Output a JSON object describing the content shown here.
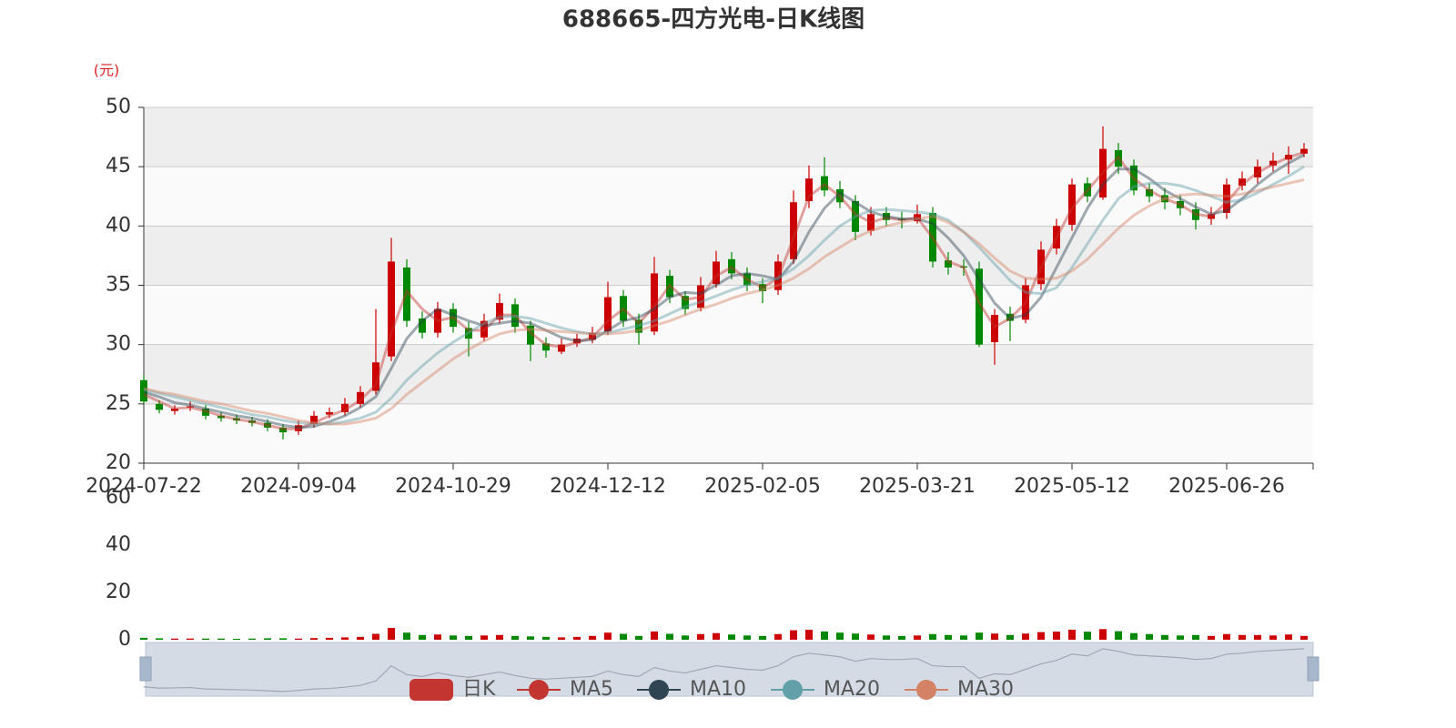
{
  "chart_data": {
    "type": "candlestick",
    "title": "688665-四方光电-日K线图",
    "y_unit": "(元)",
    "categories": [
      "2024-07-22",
      null,
      null,
      null,
      null,
      null,
      null,
      null,
      null,
      null,
      "2024-09-04",
      null,
      null,
      null,
      null,
      null,
      null,
      null,
      null,
      null,
      "2024-10-29",
      null,
      null,
      null,
      null,
      null,
      null,
      null,
      null,
      null,
      "2024-12-12",
      null,
      null,
      null,
      null,
      null,
      null,
      null,
      null,
      null,
      "2025-02-05",
      null,
      null,
      null,
      null,
      null,
      null,
      null,
      null,
      null,
      "2025-03-21",
      null,
      null,
      null,
      null,
      null,
      null,
      null,
      null,
      null,
      "2025-05-12",
      null,
      null,
      null,
      null,
      null,
      null,
      null,
      null,
      null,
      "2025-06-26",
      null,
      null,
      null,
      null,
      null
    ],
    "name": "日K",
    "color": "#c23531",
    "up_color": "#cc0000",
    "down_color": "#008800",
    "open": [
      27.0,
      25.0,
      24.4,
      24.7,
      24.6,
      24.0,
      23.8,
      23.6,
      23.4,
      23.0,
      22.7,
      23.3,
      24.1,
      24.3,
      25.0,
      26.1,
      29.0,
      36.5,
      32.2,
      31.0,
      33.0,
      31.4,
      30.6,
      32.1,
      33.4,
      31.6,
      30.1,
      29.4,
      30.1,
      30.4,
      31.1,
      34.1,
      32.1,
      31.1,
      35.8,
      34.1,
      33.1,
      35.1,
      37.2,
      36.0,
      35.1,
      34.6,
      37.2,
      42.1,
      44.2,
      43.1,
      42.1,
      39.6,
      41.1,
      40.6,
      40.4,
      41.1,
      37.1,
      36.6,
      36.4,
      30.2,
      32.6,
      32.1,
      35.1,
      38.1,
      40.1,
      43.6,
      42.4,
      46.4,
      45.1,
      43.1,
      42.6,
      42.1,
      41.4,
      40.6,
      41.1,
      43.4,
      44.1,
      45.1,
      45.6,
      46.1
    ],
    "close": [
      25.2,
      24.5,
      24.6,
      24.8,
      24.0,
      23.8,
      23.6,
      23.4,
      23.0,
      22.6,
      23.2,
      24.0,
      24.3,
      25.0,
      26.0,
      28.5,
      37.0,
      32.0,
      31.0,
      33.0,
      31.5,
      30.5,
      32.0,
      33.5,
      31.5,
      30.0,
      29.5,
      30.0,
      30.5,
      31.0,
      34.0,
      32.0,
      31.0,
      36.0,
      34.0,
      33.0,
      35.0,
      37.0,
      36.0,
      35.0,
      34.5,
      37.0,
      42.0,
      44.0,
      43.0,
      42.0,
      39.5,
      41.0,
      40.5,
      40.5,
      41.0,
      37.0,
      36.5,
      36.5,
      30.0,
      32.5,
      32.0,
      35.0,
      38.0,
      40.0,
      43.5,
      42.5,
      46.5,
      45.0,
      43.0,
      42.5,
      42.0,
      41.5,
      40.5,
      41.0,
      43.5,
      44.0,
      45.0,
      45.5,
      46.0,
      46.5
    ],
    "low": [
      25.0,
      24.2,
      24.1,
      24.4,
      23.7,
      23.5,
      23.3,
      23.1,
      22.7,
      22.0,
      22.4,
      23.0,
      23.8,
      24.0,
      24.7,
      25.8,
      28.6,
      31.5,
      30.5,
      30.6,
      31.0,
      29.0,
      30.3,
      31.8,
      31.0,
      28.6,
      28.9,
      29.2,
      29.8,
      30.1,
      30.8,
      31.5,
      30.0,
      30.8,
      33.5,
      32.5,
      32.8,
      34.8,
      35.5,
      34.5,
      33.5,
      34.2,
      36.8,
      41.5,
      42.5,
      41.5,
      38.8,
      39.2,
      40.0,
      39.8,
      40.2,
      36.5,
      35.9,
      35.8,
      29.8,
      28.3,
      30.3,
      31.8,
      34.6,
      37.6,
      39.6,
      42.0,
      42.2,
      44.4,
      42.6,
      42.0,
      41.4,
      40.9,
      39.7,
      40.1,
      40.6,
      43.0,
      43.6,
      44.6,
      44.4,
      45.8
    ],
    "high": [
      27.4,
      25.3,
      24.9,
      25.2,
      24.9,
      24.3,
      24.1,
      23.9,
      23.7,
      23.3,
      23.6,
      24.4,
      24.7,
      25.5,
      26.5,
      33.0,
      39.0,
      37.2,
      32.8,
      33.6,
      33.5,
      31.9,
      32.6,
      34.3,
      33.9,
      32.0,
      30.6,
      30.5,
      30.9,
      31.5,
      35.3,
      34.6,
      32.6,
      37.4,
      36.3,
      34.5,
      35.7,
      37.9,
      37.8,
      36.5,
      35.6,
      37.6,
      43.0,
      45.1,
      45.8,
      43.8,
      42.6,
      41.6,
      41.6,
      41.2,
      41.8,
      41.6,
      37.8,
      37.2,
      37.0,
      33.0,
      33.2,
      35.6,
      38.7,
      40.6,
      44.0,
      44.1,
      48.4,
      47.0,
      45.6,
      43.6,
      43.2,
      42.6,
      42.0,
      41.6,
      44.0,
      44.6,
      45.6,
      46.2,
      46.7,
      47.0
    ],
    "series": [
      {
        "name": "MA5",
        "color": "#c23531",
        "values": [
          25.8,
          25.2,
          24.6,
          24.7,
          24.4,
          24.0,
          23.7,
          23.5,
          23.2,
          22.9,
          22.9,
          23.4,
          24.0,
          24.5,
          25.3,
          26.6,
          31.0,
          34.5,
          33.0,
          32.0,
          32.3,
          31.2,
          31.2,
          32.5,
          32.5,
          31.0,
          30.0,
          29.8,
          30.2,
          30.6,
          32.0,
          33.0,
          31.8,
          33.2,
          35.0,
          33.8,
          34.0,
          35.8,
          36.5,
          35.5,
          34.8,
          35.6,
          39.0,
          42.5,
          43.5,
          42.5,
          41.0,
          40.3,
          40.7,
          40.5,
          40.7,
          39.0,
          37.0,
          36.5,
          33.5,
          31.5,
          32.2,
          33.5,
          36.5,
          39.0,
          41.5,
          43.0,
          44.5,
          45.8,
          44.0,
          43.0,
          42.3,
          41.8,
          41.0,
          40.8,
          42.0,
          43.5,
          44.5,
          45.2,
          45.8,
          46.2
        ]
      },
      {
        "name": "MA10",
        "color": "#2f4554",
        "values": [
          26.0,
          25.6,
          25.1,
          24.9,
          24.6,
          24.3,
          24.0,
          23.8,
          23.5,
          23.2,
          23.0,
          23.1,
          23.5,
          24.0,
          24.7,
          25.6,
          28.0,
          30.5,
          32.0,
          33.0,
          32.5,
          32.0,
          31.6,
          31.8,
          32.0,
          31.8,
          31.2,
          30.6,
          30.3,
          30.4,
          31.2,
          32.0,
          32.3,
          33.0,
          34.0,
          34.4,
          34.3,
          35.0,
          35.8,
          36.0,
          35.8,
          35.5,
          37.0,
          39.5,
          41.5,
          42.8,
          42.0,
          41.2,
          40.8,
          40.6,
          40.6,
          40.2,
          39.0,
          37.5,
          35.5,
          33.5,
          32.2,
          32.5,
          34.0,
          36.5,
          39.0,
          41.5,
          43.5,
          44.8,
          44.8,
          44.0,
          43.0,
          42.3,
          41.6,
          41.0,
          41.3,
          42.3,
          43.5,
          44.5,
          45.3,
          46.0
        ]
      },
      {
        "name": "MA20",
        "color": "#61a0a8",
        "values": [
          26.2,
          25.9,
          25.6,
          25.3,
          25.0,
          24.7,
          24.4,
          24.1,
          23.9,
          23.6,
          23.4,
          23.3,
          23.3,
          23.5,
          23.8,
          24.3,
          25.5,
          27.0,
          28.2,
          29.3,
          30.2,
          31.0,
          31.8,
          32.3,
          32.4,
          32.2,
          31.8,
          31.4,
          31.1,
          30.9,
          31.0,
          31.3,
          31.6,
          32.0,
          32.6,
          33.2,
          33.6,
          34.1,
          34.6,
          35.0,
          35.3,
          35.6,
          36.4,
          37.5,
          38.8,
          40.0,
          40.8,
          41.3,
          41.4,
          41.3,
          41.2,
          41.0,
          40.5,
          39.5,
          38.2,
          36.8,
          35.4,
          34.4,
          34.3,
          34.8,
          36.5,
          38.5,
          40.5,
          42.3,
          43.3,
          43.6,
          43.6,
          43.4,
          43.0,
          42.5,
          42.0,
          42.2,
          42.8,
          43.5,
          44.2,
          45.0
        ]
      },
      {
        "name": "MA30",
        "color": "#d48265",
        "values": [
          26.3,
          26.0,
          25.8,
          25.5,
          25.2,
          25.0,
          24.7,
          24.4,
          24.2,
          23.9,
          23.6,
          23.4,
          23.3,
          23.3,
          23.5,
          23.8,
          24.6,
          25.8,
          26.8,
          27.8,
          28.8,
          29.6,
          30.3,
          30.9,
          31.2,
          31.3,
          31.2,
          31.1,
          31.0,
          30.9,
          30.9,
          31.0,
          31.2,
          31.6,
          32.0,
          32.5,
          33.0,
          33.4,
          33.9,
          34.3,
          34.6,
          35.0,
          35.6,
          36.4,
          37.4,
          38.2,
          39.0,
          39.6,
          40.0,
          40.3,
          40.6,
          40.8,
          40.3,
          39.5,
          38.5,
          37.3,
          36.2,
          35.6,
          35.5,
          35.6,
          36.2,
          37.2,
          38.5,
          39.8,
          40.9,
          41.7,
          42.3,
          42.6,
          42.7,
          42.6,
          42.5,
          42.7,
          43.0,
          43.3,
          43.6,
          43.9
        ]
      }
    ],
    "ylim": [
      20,
      50
    ],
    "yticks": [
      20,
      25,
      30,
      35,
      40,
      45,
      50
    ],
    "volume": {
      "ylim": [
        0,
        60
      ],
      "yticks": [
        0,
        20,
        40,
        60
      ],
      "values": [
        0.8,
        0.6,
        0.5,
        0.5,
        0.5,
        0.5,
        0.4,
        0.5,
        0.6,
        0.6,
        0.5,
        0.7,
        0.8,
        1.0,
        1.2,
        2.5,
        5.0,
        3.0,
        2.0,
        2.2,
        1.8,
        1.6,
        1.8,
        2.0,
        1.6,
        1.4,
        1.2,
        1.0,
        1.2,
        1.6,
        3.0,
        2.5,
        1.6,
        3.5,
        2.5,
        1.8,
        2.4,
        2.8,
        2.2,
        1.8,
        1.6,
        2.4,
        4.0,
        4.2,
        3.5,
        3.0,
        2.6,
        2.2,
        1.8,
        1.6,
        1.8,
        2.4,
        2.0,
        1.8,
        3.0,
        2.6,
        2.0,
        2.6,
        3.2,
        3.4,
        4.2,
        3.4,
        4.5,
        3.6,
        2.8,
        2.4,
        2.0,
        1.8,
        2.0,
        1.6,
        2.4,
        2.0,
        2.0,
        1.8,
        2.2,
        1.6
      ]
    }
  }
}
